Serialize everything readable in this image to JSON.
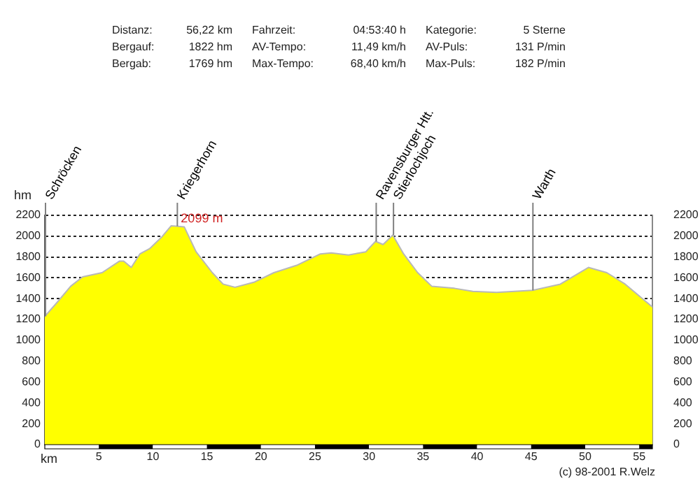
{
  "chart_data": {
    "type": "area",
    "xlabel": "km",
    "ylabel": "hm",
    "annotations": [
      "Distanz:",
      "56,22 km",
      "Fahrzeit:",
      "04:53:40 h",
      "Kategorie:",
      "5 Sterne",
      "Bergauf:",
      "1822 hm",
      "AV-Tempo:",
      "11,49 km/h",
      "AV-Puls:",
      "131 P/min",
      "Bergab:",
      "1769 hm",
      "Max-Tempo:",
      "68,40 km/h",
      "Max-Puls:",
      "182 P/min",
      {
        "text": "2099 m",
        "x": 12.2,
        "y": 2099
      },
      "(c) 98-2001 R.Welz"
    ],
    "x": [
      0,
      1.1,
      2.4,
      3.5,
      5.3,
      6.9,
      7.3,
      8.0,
      8.8,
      9.7,
      10.8,
      11.7,
      12.9,
      14.0,
      15.5,
      16.5,
      17.6,
      19.4,
      21.2,
      23.3,
      25.5,
      26.5,
      28.1,
      29.7,
      30.6,
      31.3,
      32.2,
      33.2,
      34.5,
      35.8,
      37.9,
      39.6,
      41.8,
      45.1,
      47.7,
      50.3,
      52.0,
      53.7,
      56.0,
      56.22
    ],
    "series": [
      {
        "color": "#ffff00",
        "values": [
          1230,
          1360,
          1520,
          1610,
          1650,
          1760,
          1760,
          1700,
          1830,
          1880,
          1990,
          2100,
          2090,
          1850,
          1650,
          1540,
          1510,
          1560,
          1650,
          1720,
          1830,
          1840,
          1820,
          1850,
          1950,
          1920,
          2010,
          1830,
          1650,
          1520,
          1500,
          1470,
          1460,
          1480,
          1540,
          1700,
          1650,
          1540,
          1340,
          1320
        ]
      }
    ],
    "xlim": [
      0,
      56.22
    ],
    "xticks": [
      5,
      10,
      15,
      20,
      25,
      30,
      35,
      40,
      45,
      50,
      55
    ],
    "ylim": [
      0,
      2200
    ],
    "yticks": [
      0,
      200,
      400,
      600,
      800,
      1000,
      1200,
      1400,
      1600,
      1800,
      2000,
      2200
    ],
    "y2lim": [
      0,
      2200
    ],
    "y2ticks": [
      0,
      200,
      400,
      600,
      800,
      1000,
      1200,
      1400,
      1600,
      1800,
      2000,
      2200
    ],
    "ref_lines": [
      {
        "axis": "x",
        "value": 0,
        "label": "Schröcken",
        "color": "#808080"
      },
      {
        "axis": "x",
        "value": 12.2,
        "label": "Kriegerhorn",
        "color": "#808080"
      },
      {
        "axis": "x",
        "value": 30.6,
        "label": "Ravensburger Htt.",
        "color": "#808080"
      },
      {
        "axis": "x",
        "value": 32.2,
        "label": "Stierlochjoch",
        "color": "#808080"
      },
      {
        "axis": "x",
        "value": 45.1,
        "label": "Warth",
        "color": "#808080"
      }
    ],
    "grid": "y",
    "legend": false,
    "marker": "none",
    "line_style": "solid"
  }
}
